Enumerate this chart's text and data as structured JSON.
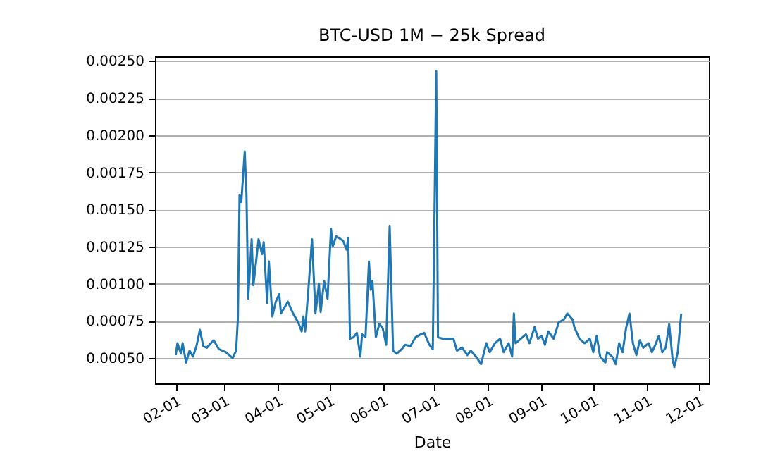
{
  "chart_data": {
    "type": "line",
    "title": "BTC-USD 1M − 25k Spread",
    "xlabel": "Date",
    "x": [
      "--02-01",
      "--02-02",
      "--02-04",
      "--02-05",
      "--02-07",
      "--02-09",
      "--02-11",
      "--02-13",
      "--02-15",
      "--02-17",
      "--02-19",
      "--02-23",
      "--02-26",
      "--03-02",
      "--03-06",
      "--03-08",
      "--03-09",
      "--03-10",
      "--03-11",
      "--03-13",
      "--03-14",
      "--03-15",
      "--03-17",
      "--03-18",
      "--03-19",
      "--03-21",
      "--03-23",
      "--03-24",
      "--03-26",
      "--03-27",
      "--03-29",
      "--03-31",
      "--04-02",
      "--04-03",
      "--04-05",
      "--04-07",
      "--04-10",
      "--04-13",
      "--04-15",
      "--04-16",
      "--04-17",
      "--04-19",
      "--04-21",
      "--04-23",
      "--04-25",
      "--04-26",
      "--04-28",
      "--04-30",
      "--05-02",
      "--05-03",
      "--05-05",
      "--05-09",
      "--05-11",
      "--05-12",
      "--05-13",
      "--05-15",
      "--05-17",
      "--05-19",
      "--05-20",
      "--05-22",
      "--05-24",
      "--05-25",
      "--05-26",
      "--05-28",
      "--05-30",
      "--06-01",
      "--06-03",
      "--06-05",
      "--06-07",
      "--06-09",
      "--06-12",
      "--06-14",
      "--06-17",
      "--06-20",
      "--06-23",
      "--06-25",
      "--06-28",
      "--06-30",
      "--07-02",
      "--07-03",
      "--07-06",
      "--07-09",
      "--07-12",
      "--07-14",
      "--07-17",
      "--07-20",
      "--07-22",
      "--07-25",
      "--07-28",
      "--07-31",
      "--08-02",
      "--08-05",
      "--08-08",
      "--08-10",
      "--08-13",
      "--08-15",
      "--08-16",
      "--08-17",
      "--08-20",
      "--08-23",
      "--08-25",
      "--08-28",
      "--08-30",
      "--09-01",
      "--09-03",
      "--09-05",
      "--09-08",
      "--09-11",
      "--09-14",
      "--09-16",
      "--09-19",
      "--09-20",
      "--09-23",
      "--09-26",
      "--09-29",
      "--10-01",
      "--10-03",
      "--10-05",
      "--10-08",
      "--10-09",
      "--10-12",
      "--10-14",
      "--10-16",
      "--10-18",
      "--10-20",
      "--10-22",
      "--10-24",
      "--10-26",
      "--10-28",
      "--10-30",
      "--11-02",
      "--11-04",
      "--11-06",
      "--11-08",
      "--11-10",
      "--11-12",
      "--11-14",
      "--11-16",
      "--11-17",
      "--11-19",
      "--11-21"
    ],
    "series": [
      {
        "color": "#1f77b4",
        "values": [
          0.00052,
          0.0006,
          0.00053,
          0.0006,
          0.00047,
          0.00055,
          0.00051,
          0.00058,
          0.00069,
          0.00058,
          0.00057,
          0.00062,
          0.00056,
          0.00054,
          0.0005,
          0.00055,
          0.00076,
          0.0016,
          0.00155,
          0.00189,
          0.0016,
          0.0009,
          0.0013,
          0.00099,
          0.00109,
          0.0013,
          0.0012,
          0.00128,
          0.00087,
          0.00115,
          0.00078,
          0.00088,
          0.00093,
          0.0008,
          0.00084,
          0.00088,
          0.0008,
          0.00074,
          0.00068,
          0.00078,
          0.00068,
          0.00098,
          0.0013,
          0.0008,
          0.001,
          0.00081,
          0.00102,
          0.0009,
          0.00137,
          0.00125,
          0.00132,
          0.00129,
          0.00123,
          0.00131,
          0.00063,
          0.00064,
          0.00067,
          0.00051,
          0.00066,
          0.00064,
          0.00115,
          0.00096,
          0.00102,
          0.00064,
          0.00073,
          0.0007,
          0.00059,
          0.00139,
          0.00055,
          0.00053,
          0.00056,
          0.00059,
          0.00058,
          0.00064,
          0.00066,
          0.00067,
          0.00059,
          0.00056,
          0.00243,
          0.00064,
          0.00063,
          0.00063,
          0.00063,
          0.00055,
          0.00057,
          0.00052,
          0.00055,
          0.00051,
          0.00046,
          0.0006,
          0.00054,
          0.0006,
          0.00063,
          0.00054,
          0.0006,
          0.00051,
          0.0008,
          0.0006,
          0.00063,
          0.00066,
          0.0006,
          0.00071,
          0.00063,
          0.00065,
          0.00059,
          0.00068,
          0.00063,
          0.00074,
          0.00076,
          0.0008,
          0.00076,
          0.00071,
          0.00063,
          0.0006,
          0.00063,
          0.00054,
          0.00065,
          0.00051,
          0.00047,
          0.00054,
          0.00051,
          0.00046,
          0.0006,
          0.00054,
          0.0007,
          0.0008,
          0.0006,
          0.00052,
          0.00062,
          0.00057,
          0.0006,
          0.00054,
          0.00059,
          0.00065,
          0.00054,
          0.00057,
          0.00073,
          0.00049,
          0.00044,
          0.00054,
          0.0008
        ]
      }
    ],
    "xlim": [
      "--01-20",
      "--12-07"
    ],
    "xticks": [
      {
        "value": "--02-01",
        "label": "02-01"
      },
      {
        "value": "--03-01",
        "label": "03-01"
      },
      {
        "value": "--04-01",
        "label": "04-01"
      },
      {
        "value": "--05-01",
        "label": "05-01"
      },
      {
        "value": "--06-01",
        "label": "06-01"
      },
      {
        "value": "--07-01",
        "label": "07-01"
      },
      {
        "value": "--08-01",
        "label": "08-01"
      },
      {
        "value": "--09-01",
        "label": "09-01"
      },
      {
        "value": "--10-01",
        "label": "10-01"
      },
      {
        "value": "--11-01",
        "label": "11-01"
      },
      {
        "value": "--12-01",
        "label": "12-01"
      }
    ],
    "ylim": [
      0.00033,
      0.00253
    ],
    "yticks": [
      {
        "value": 0.0005,
        "label": "0.00050"
      },
      {
        "value": 0.00075,
        "label": "0.00075"
      },
      {
        "value": 0.001,
        "label": "0.00100"
      },
      {
        "value": 0.00125,
        "label": "0.00125"
      },
      {
        "value": 0.0015,
        "label": "0.00150"
      },
      {
        "value": 0.00175,
        "label": "0.00175"
      },
      {
        "value": 0.002,
        "label": "0.00200"
      },
      {
        "value": 0.00225,
        "label": "0.00225"
      },
      {
        "value": 0.0025,
        "label": "0.00250"
      }
    ],
    "grid": "y"
  }
}
